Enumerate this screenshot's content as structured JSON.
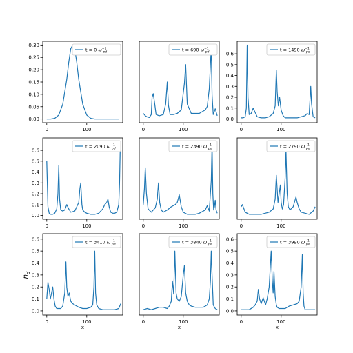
{
  "figure": {
    "ylabel": "n_d",
    "xlabel": "x"
  },
  "chart_data": [
    {
      "type": "line",
      "legend": "t = 0 ω_pd^-1",
      "legend_t": "t = 0",
      "xticks": [
        0,
        100
      ],
      "yticks": [
        "0.00",
        "0.05",
        "0.10",
        "0.15",
        "0.20",
        "0.25",
        "0.30"
      ],
      "xlim": [
        -10,
        190
      ],
      "ylim": [
        -0.015,
        0.315
      ],
      "xlabel": "",
      "color": "#1f77b4",
      "x": [
        0,
        10,
        20,
        30,
        40,
        50,
        55,
        60,
        65,
        70,
        75,
        80,
        90,
        100,
        110,
        120,
        130,
        140,
        160,
        180
      ],
      "y": [
        0,
        0,
        0.003,
        0.016,
        0.06,
        0.16,
        0.23,
        0.285,
        0.3,
        0.285,
        0.23,
        0.16,
        0.06,
        0.016,
        0.003,
        0,
        0,
        0,
        0,
        0
      ]
    },
    {
      "type": "line",
      "legend": "t = 690 ω_pd^-1",
      "legend_t": "t = 690",
      "xticks": [
        0,
        100
      ],
      "yticks": [],
      "xlim": [
        -10,
        190
      ],
      "ylim": [
        -0.04,
        0.66
      ],
      "xlabel": "",
      "color": "#1f77b4",
      "x": [
        0,
        5,
        10,
        15,
        20,
        22,
        25,
        28,
        32,
        40,
        50,
        56,
        60,
        63,
        67,
        75,
        85,
        95,
        103,
        106,
        110,
        120,
        130,
        140,
        150,
        155,
        160,
        165,
        170,
        172,
        175,
        180,
        185
      ],
      "y": [
        0.04,
        0.02,
        0.01,
        0.005,
        0.03,
        0.18,
        0.21,
        0.14,
        0.03,
        0.02,
        0.03,
        0.12,
        0.31,
        0.11,
        0.03,
        0.03,
        0.04,
        0.07,
        0.3,
        0.46,
        0.12,
        0.04,
        0.04,
        0.04,
        0.06,
        0.07,
        0.1,
        0.25,
        0.61,
        0.2,
        0.03,
        0.08,
        0.02
      ]
    },
    {
      "type": "line",
      "legend": "t = 1490 ω_pd^-1",
      "legend_t": "t = 1490",
      "xticks": [
        0,
        100
      ],
      "yticks": [
        "0.0",
        "0.1",
        "0.2",
        "0.3",
        "0.4",
        "0.5",
        "0.6"
      ],
      "xlim": [
        -10,
        190
      ],
      "ylim": [
        -0.035,
        0.715
      ],
      "xlabel": "",
      "color": "#1f77b4",
      "x": [
        0,
        5,
        10,
        13,
        15,
        17,
        20,
        25,
        30,
        35,
        40,
        50,
        60,
        70,
        80,
        85,
        88,
        90,
        93,
        96,
        100,
        105,
        110,
        120,
        130,
        140,
        150,
        160,
        165,
        170,
        174,
        176,
        180,
        185
      ],
      "y": [
        0.01,
        0.01,
        0.02,
        0.1,
        0.68,
        0.2,
        0.04,
        0.05,
        0.1,
        0.06,
        0.02,
        0.01,
        0.01,
        0.02,
        0.05,
        0.12,
        0.45,
        0.25,
        0.12,
        0.2,
        0.08,
        0.03,
        0.01,
        0.01,
        0.01,
        0.01,
        0.02,
        0.03,
        0.05,
        0.04,
        0.3,
        0.14,
        0.02,
        0.01
      ]
    },
    {
      "type": "line",
      "legend": "t = 2090 ω_pd^-1",
      "legend_t": "t = 2090",
      "xticks": [
        0,
        100
      ],
      "yticks": [
        "0.0",
        "0.1",
        "0.2",
        "0.3",
        "0.4",
        "0.5",
        "0.6"
      ],
      "xlim": [
        -10,
        190
      ],
      "ylim": [
        -0.035,
        0.715
      ],
      "xlabel": "",
      "color": "#1f77b4",
      "x": [
        0,
        3,
        6,
        10,
        15,
        20,
        25,
        28,
        30,
        32,
        35,
        40,
        45,
        50,
        55,
        60,
        70,
        80,
        83,
        85,
        88,
        90,
        95,
        100,
        110,
        120,
        130,
        140,
        145,
        150,
        153,
        156,
        160,
        165,
        170,
        175,
        180,
        182,
        184
      ],
      "y": [
        0.5,
        0.08,
        0.02,
        0.01,
        0.01,
        0.02,
        0.06,
        0.2,
        0.46,
        0.15,
        0.05,
        0.04,
        0.05,
        0.1,
        0.06,
        0.03,
        0.04,
        0.12,
        0.25,
        0.3,
        0.1,
        0.05,
        0.03,
        0.02,
        0.01,
        0.01,
        0.02,
        0.06,
        0.1,
        0.12,
        0.15,
        0.08,
        0.03,
        0.02,
        0.02,
        0.03,
        0.1,
        0.3,
        0.66
      ]
    },
    {
      "type": "line",
      "legend": "t = 2390 ω_pd^-1",
      "legend_t": "t = 2390",
      "xticks": [
        0,
        100
      ],
      "yticks": [],
      "xlim": [
        -10,
        190
      ],
      "ylim": [
        -0.035,
        0.715
      ],
      "xlabel": "",
      "color": "#1f77b4",
      "x": [
        0,
        3,
        5,
        8,
        12,
        20,
        30,
        35,
        38,
        41,
        45,
        50,
        60,
        70,
        80,
        85,
        90,
        95,
        100,
        110,
        120,
        130,
        140,
        150,
        155,
        160,
        165,
        170,
        172,
        174,
        176,
        178,
        180,
        182,
        185
      ],
      "y": [
        0.1,
        0.25,
        0.44,
        0.2,
        0.06,
        0.03,
        0.07,
        0.15,
        0.3,
        0.12,
        0.05,
        0.03,
        0.05,
        0.08,
        0.1,
        0.12,
        0.19,
        0.08,
        0.03,
        0.01,
        0.01,
        0.01,
        0.02,
        0.04,
        0.05,
        0.09,
        0.04,
        0.32,
        0.67,
        0.2,
        0.05,
        0.08,
        0.14,
        0.05,
        0.02
      ]
    },
    {
      "type": "line",
      "legend": "t = 2790 ω_pd^-1",
      "legend_t": "t = 2790",
      "xticks": [
        0,
        100
      ],
      "yticks": [],
      "xlim": [
        -10,
        190
      ],
      "ylim": [
        -0.035,
        0.715
      ],
      "xlabel": "",
      "color": "#1f77b4",
      "x": [
        0,
        3,
        6,
        10,
        15,
        20,
        30,
        40,
        50,
        60,
        70,
        80,
        85,
        88,
        92,
        95,
        98,
        100,
        103,
        106,
        110,
        112,
        115,
        118,
        122,
        130,
        137,
        140,
        145,
        150,
        160,
        170,
        180,
        185
      ],
      "y": [
        0.08,
        0.1,
        0.07,
        0.03,
        0.02,
        0.01,
        0.01,
        0.01,
        0.01,
        0.02,
        0.03,
        0.06,
        0.15,
        0.37,
        0.12,
        0.2,
        0.28,
        0.12,
        0.06,
        0.1,
        0.35,
        0.6,
        0.2,
        0.08,
        0.05,
        0.08,
        0.17,
        0.12,
        0.06,
        0.03,
        0.02,
        0.01,
        0.04,
        0.08
      ]
    },
    {
      "type": "line",
      "legend": "t = 3410 ω_pd^-1",
      "legend_t": "t = 3410",
      "xticks": [
        0,
        100
      ],
      "yticks": [
        "0.0",
        "0.1",
        "0.2",
        "0.3",
        "0.4",
        "0.5",
        "0.6"
      ],
      "xlim": [
        -10,
        190
      ],
      "ylim": [
        -0.035,
        0.645
      ],
      "xlabel": "x",
      "color": "#1f77b4",
      "x": [
        0,
        3,
        6,
        9,
        12,
        15,
        18,
        21,
        25,
        30,
        35,
        40,
        45,
        48,
        50,
        53,
        56,
        60,
        65,
        70,
        75,
        80,
        90,
        100,
        110,
        115,
        118,
        120,
        122,
        125,
        130,
        140,
        150,
        160,
        170,
        180,
        185
      ],
      "y": [
        0.1,
        0.24,
        0.18,
        0.1,
        0.15,
        0.2,
        0.1,
        0.04,
        0.02,
        0.02,
        0.02,
        0.04,
        0.15,
        0.41,
        0.2,
        0.12,
        0.15,
        0.08,
        0.06,
        0.05,
        0.04,
        0.03,
        0.02,
        0.02,
        0.03,
        0.05,
        0.2,
        0.5,
        0.15,
        0.05,
        0.02,
        0.01,
        0.01,
        0.01,
        0.01,
        0.02,
        0.06
      ]
    },
    {
      "type": "line",
      "legend": "t = 3840 ω_pd^-1",
      "legend_t": "t = 3840",
      "xticks": [
        0,
        100
      ],
      "yticks": [],
      "xlim": [
        -10,
        190
      ],
      "ylim": [
        -0.035,
        0.645
      ],
      "xlabel": "x",
      "color": "#1f77b4",
      "x": [
        0,
        10,
        20,
        30,
        40,
        50,
        60,
        65,
        70,
        73,
        76,
        79,
        82,
        85,
        90,
        95,
        100,
        103,
        106,
        110,
        115,
        120,
        130,
        140,
        150,
        155,
        160,
        165,
        168,
        170,
        172,
        175,
        180,
        185
      ],
      "y": [
        0.01,
        0.02,
        0.01,
        0.02,
        0.03,
        0.03,
        0.02,
        0.04,
        0.08,
        0.25,
        0.14,
        0.5,
        0.15,
        0.1,
        0.08,
        0.12,
        0.3,
        0.38,
        0.15,
        0.08,
        0.05,
        0.04,
        0.03,
        0.03,
        0.03,
        0.04,
        0.05,
        0.1,
        0.25,
        0.5,
        0.3,
        0.05,
        0.02,
        0.01
      ]
    },
    {
      "type": "line",
      "legend": "t = 3990 ω_pd^-1",
      "legend_t": "t = 3990",
      "xticks": [
        0,
        100
      ],
      "yticks": [
        "0.0",
        "0.1",
        "0.2",
        "0.3",
        "0.4",
        "0.5",
        "0.6"
      ],
      "xlim": [
        -10,
        190
      ],
      "ylim": [
        -0.035,
        0.645
      ],
      "xlabel": "x",
      "color": "#1f77b4",
      "x": [
        0,
        10,
        20,
        30,
        35,
        40,
        43,
        46,
        50,
        55,
        58,
        61,
        65,
        70,
        75,
        78,
        80,
        82,
        85,
        88,
        90,
        95,
        100,
        110,
        120,
        130,
        140,
        145,
        150,
        153,
        155,
        157,
        160,
        170,
        180,
        185
      ],
      "y": [
        0.01,
        0.01,
        0.01,
        0.03,
        0.05,
        0.08,
        0.18,
        0.1,
        0.06,
        0.11,
        0.08,
        0.05,
        0.1,
        0.2,
        0.5,
        0.25,
        0.15,
        0.33,
        0.12,
        0.05,
        0.03,
        0.02,
        0.02,
        0.02,
        0.04,
        0.05,
        0.06,
        0.08,
        0.2,
        0.47,
        0.15,
        0.04,
        0.01,
        0.01,
        0.01,
        0.01
      ]
    }
  ]
}
